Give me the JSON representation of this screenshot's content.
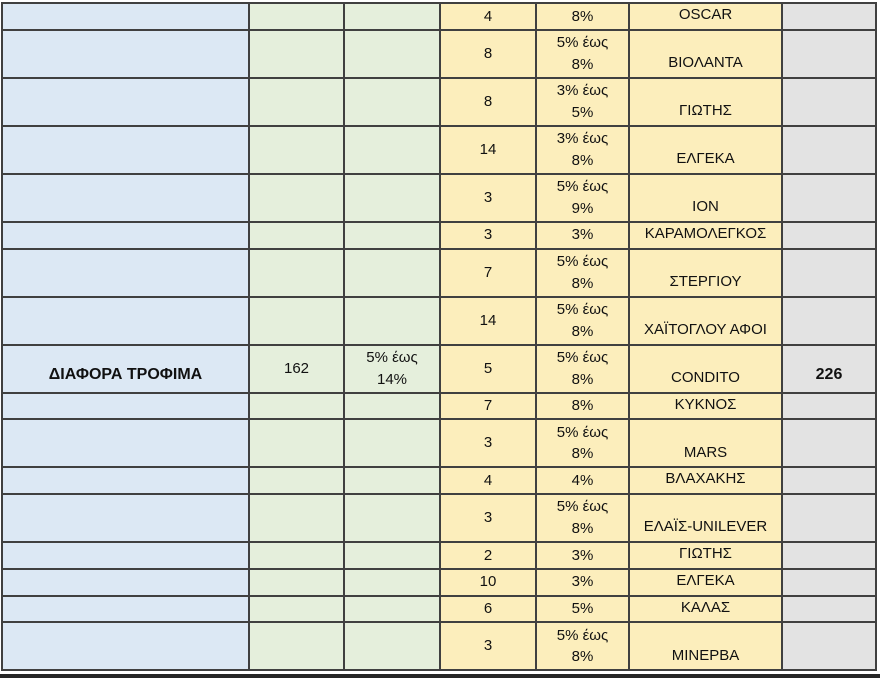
{
  "colors": {
    "category_column": "#dce8f4",
    "summary_columns": "#e5efdc",
    "detail_columns": "#fceebc",
    "total_column": "#e3e3e3",
    "border": "#404040"
  },
  "table": {
    "category": {
      "label": "ΔΙΑΦΟΡΑ ΤΡΟΦΙΜΑ",
      "total_count": "162",
      "total_range": "5% έως\n14%",
      "grand_total": "226"
    },
    "rows": [
      {
        "count": "4",
        "pct": "8%",
        "name": "OSCAR"
      },
      {
        "count": "8",
        "pct": "5% έως\n8%",
        "name": "ΒΙΟΛΑΝΤΑ"
      },
      {
        "count": "8",
        "pct": "3% έως\n5%",
        "name": "ΓΙΩΤΗΣ"
      },
      {
        "count": "14",
        "pct": "3% έως\n8%",
        "name": "ΕΛΓΕΚΑ"
      },
      {
        "count": "3",
        "pct": "5% έως\n9%",
        "name": "ION"
      },
      {
        "count": "3",
        "pct": "3%",
        "name": "ΚΑΡΑΜΟΛΕΓΚΟΣ"
      },
      {
        "count": "7",
        "pct": "5% έως\n8%",
        "name": "ΣΤΕΡΓΙΟΥ"
      },
      {
        "count": "14",
        "pct": "5% έως\n8%",
        "name": "ΧΑΪΤΟΓΛΟΥ ΑΦΟΙ"
      },
      {
        "count": "5",
        "pct": "5% έως\n8%",
        "name": "CONDITO"
      },
      {
        "count": "7",
        "pct": "8%",
        "name": "ΚΥΚΝΟΣ"
      },
      {
        "count": "3",
        "pct": "5% έως\n8%",
        "name": "MARS"
      },
      {
        "count": "4",
        "pct": "4%",
        "name": "ΒΛΑΧΑΚΗΣ"
      },
      {
        "count": "3",
        "pct": "5% έως\n8%",
        "name": "ΕΛΑΪΣ-UNILEVER"
      },
      {
        "count": "2",
        "pct": "3%",
        "name": "ΓΙΩΤΗΣ"
      },
      {
        "count": "10",
        "pct": "3%",
        "name": "ΕΛΓΕΚΑ"
      },
      {
        "count": "6",
        "pct": "5%",
        "name": "ΚΑΛΑΣ"
      },
      {
        "count": "3",
        "pct": "5% έως\n8%",
        "name": "ΜΙΝΕΡΒΑ"
      }
    ]
  }
}
